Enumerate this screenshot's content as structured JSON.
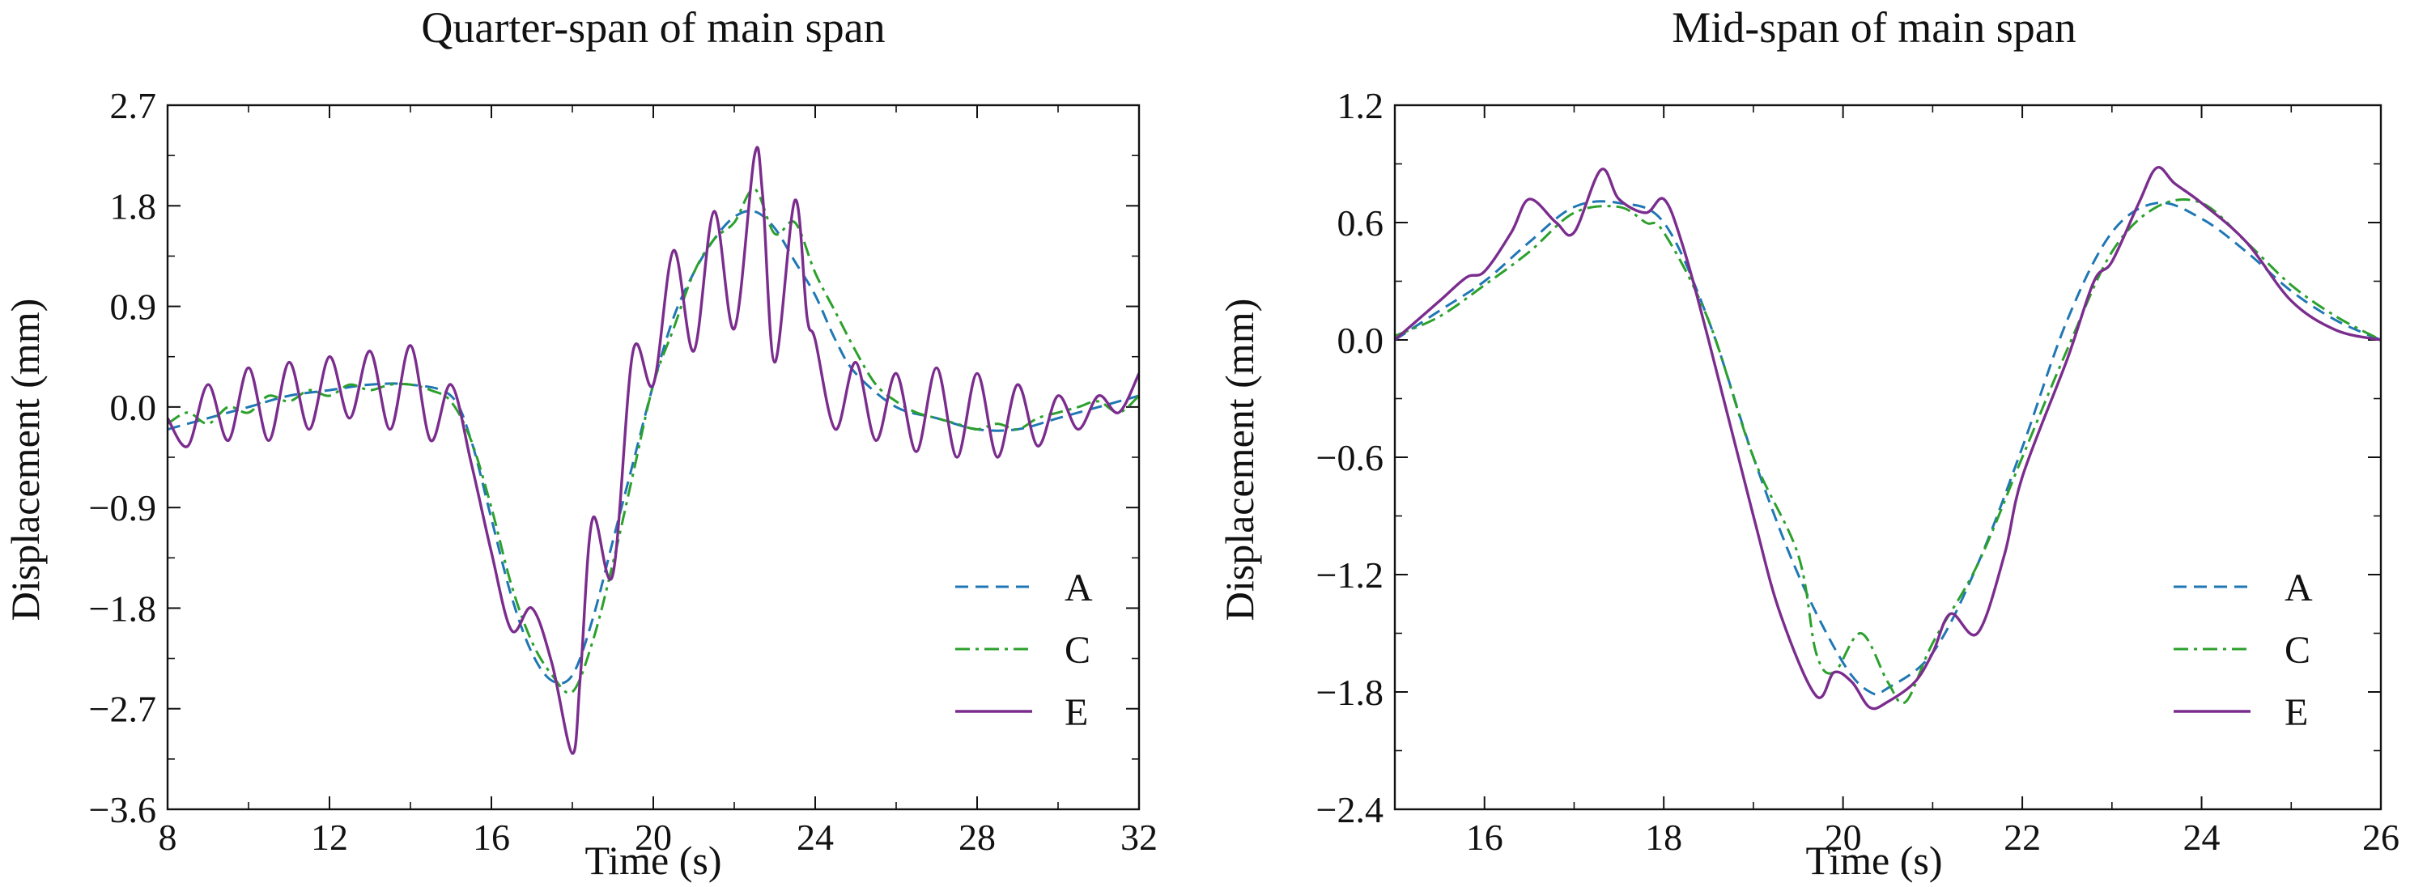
{
  "chart_data": [
    {
      "type": "line",
      "title": "Quarter-span of main span",
      "xlabel": "Time (s)",
      "ylabel": "Displacement (mm)",
      "xlim": [
        8,
        32
      ],
      "ylim": [
        -3.6,
        2.7
      ],
      "xticks": [
        8,
        12,
        16,
        20,
        24,
        28,
        32
      ],
      "xtick_labels": [
        "8",
        "12",
        "16",
        "20",
        "24",
        "28",
        "32"
      ],
      "yticks": [
        -3.6,
        -2.7,
        -1.8,
        -0.9,
        0.0,
        0.9,
        1.8,
        2.7
      ],
      "ytick_labels": [
        "−3.6",
        "−2.7",
        "−1.8",
        "−0.9",
        "0.0",
        "0.9",
        "1.8",
        "2.7"
      ],
      "grid": false,
      "legend_position": "lower-right",
      "series": [
        {
          "name": "A",
          "color": "#1f77b4",
          "dash": "dashed",
          "x": [
            8,
            9,
            10,
            11,
            12,
            13,
            14,
            15,
            15.5,
            16,
            16.5,
            17,
            17.5,
            18,
            18.5,
            19,
            19.5,
            20,
            20.5,
            21,
            21.5,
            22,
            22.5,
            23,
            23.5,
            24,
            24.5,
            25,
            26,
            27,
            28,
            29,
            30,
            31,
            32
          ],
          "y": [
            -0.2,
            -0.1,
            0.0,
            0.1,
            0.15,
            0.2,
            0.2,
            0.1,
            -0.3,
            -1.0,
            -1.7,
            -2.2,
            -2.45,
            -2.4,
            -1.9,
            -1.2,
            -0.5,
            0.2,
            0.8,
            1.2,
            1.5,
            1.7,
            1.75,
            1.6,
            1.3,
            1.0,
            0.6,
            0.3,
            0.0,
            -0.1,
            -0.2,
            -0.2,
            -0.1,
            0.0,
            0.1
          ]
        },
        {
          "name": "C",
          "color": "#2ca02c",
          "dash": "dashdot",
          "x": [
            8,
            8.5,
            9,
            9.5,
            10,
            10.5,
            11,
            11.5,
            12,
            12.5,
            13,
            13.5,
            14,
            14.5,
            15,
            15.5,
            16,
            16.5,
            17,
            17.5,
            18,
            18.5,
            19,
            19.5,
            20,
            20.5,
            21,
            21.5,
            22,
            22.5,
            23,
            23.5,
            24,
            24.5,
            25,
            25.5,
            26,
            26.5,
            27,
            27.5,
            28,
            28.5,
            29,
            29.5,
            30,
            30.5,
            31,
            31.5,
            32
          ],
          "y": [
            -0.15,
            -0.05,
            -0.15,
            0.0,
            -0.05,
            0.1,
            0.05,
            0.15,
            0.1,
            0.2,
            0.15,
            0.2,
            0.2,
            0.15,
            0.05,
            -0.3,
            -0.9,
            -1.6,
            -2.1,
            -2.4,
            -2.55,
            -2.1,
            -1.4,
            -0.6,
            0.2,
            0.7,
            1.2,
            1.5,
            1.65,
            1.95,
            1.55,
            1.65,
            1.2,
            0.85,
            0.5,
            0.2,
            0.05,
            -0.05,
            -0.1,
            -0.15,
            -0.2,
            -0.15,
            -0.2,
            -0.1,
            -0.05,
            0.0,
            0.05,
            -0.05,
            0.1
          ]
        },
        {
          "name": "E",
          "color": "#7b2d8e",
          "dash": "solid",
          "x": [
            8,
            8.5,
            9,
            9.5,
            10,
            10.5,
            11,
            11.5,
            12,
            12.5,
            13,
            13.5,
            14,
            14.5,
            15,
            15.5,
            16,
            16.5,
            17,
            17.5,
            18,
            18.2,
            18.5,
            19,
            19.5,
            20,
            20.5,
            21,
            21.5,
            22,
            22.5,
            22.7,
            23,
            23.5,
            23.8,
            24,
            24.5,
            25,
            25.5,
            26,
            26.5,
            27,
            27.5,
            28,
            28.5,
            29,
            29.5,
            30,
            30.5,
            31,
            31.5,
            32
          ],
          "y": [
            -0.1,
            -0.35,
            0.2,
            -0.3,
            0.35,
            -0.3,
            0.4,
            -0.2,
            0.45,
            -0.1,
            0.5,
            -0.2,
            0.55,
            -0.3,
            0.2,
            -0.5,
            -1.3,
            -2.0,
            -1.8,
            -2.3,
            -3.1,
            -2.4,
            -1.0,
            -1.5,
            0.5,
            0.2,
            1.4,
            0.5,
            1.75,
            0.7,
            2.25,
            1.9,
            0.4,
            1.85,
            0.8,
            0.6,
            -0.2,
            0.4,
            -0.3,
            0.3,
            -0.4,
            0.35,
            -0.45,
            0.3,
            -0.45,
            0.2,
            -0.35,
            0.1,
            -0.2,
            0.1,
            -0.05,
            0.3
          ]
        }
      ]
    },
    {
      "type": "line",
      "title": "Mid-span of main span",
      "xlabel": "Time (s)",
      "ylabel": "Displacement (mm)",
      "xlim": [
        15,
        26
      ],
      "ylim": [
        -2.4,
        1.2
      ],
      "xticks": [
        16,
        18,
        20,
        22,
        24,
        26
      ],
      "xtick_labels": [
        "16",
        "18",
        "20",
        "22",
        "24",
        "26"
      ],
      "yticks": [
        -2.4,
        -1.8,
        -1.2,
        -0.6,
        0.0,
        0.6,
        1.2
      ],
      "ytick_labels": [
        "−2.4",
        "−1.8",
        "−1.2",
        "−0.6",
        "0.0",
        "0.6",
        "1.2"
      ],
      "grid": false,
      "legend_position": "lower-right",
      "series": [
        {
          "name": "A",
          "color": "#1f77b4",
          "dash": "dashed",
          "x": [
            15,
            15.5,
            16,
            16.5,
            17,
            17.5,
            18,
            18.5,
            19,
            19.5,
            20,
            20.3,
            20.5,
            21,
            21.5,
            22,
            22.5,
            23,
            23.5,
            24,
            24.5,
            25,
            25.5,
            26
          ],
          "y": [
            0.0,
            0.15,
            0.3,
            0.5,
            0.68,
            0.7,
            0.6,
            0.1,
            -0.6,
            -1.2,
            -1.65,
            -1.8,
            -1.78,
            -1.6,
            -1.15,
            -0.55,
            0.1,
            0.55,
            0.7,
            0.62,
            0.45,
            0.25,
            0.1,
            0.0
          ]
        },
        {
          "name": "C",
          "color": "#2ca02c",
          "dash": "dashdot",
          "x": [
            15,
            15.5,
            16,
            16.5,
            17,
            17.5,
            17.8,
            18,
            18.5,
            19,
            19.5,
            19.7,
            19.9,
            20.2,
            20.5,
            20.7,
            21,
            21.5,
            22,
            22.5,
            23,
            23.5,
            24,
            24.5,
            25,
            25.5,
            26
          ],
          "y": [
            0.02,
            0.12,
            0.28,
            0.45,
            0.65,
            0.68,
            0.6,
            0.55,
            0.1,
            -0.6,
            -1.1,
            -1.6,
            -1.7,
            -1.5,
            -1.75,
            -1.85,
            -1.55,
            -1.15,
            -0.6,
            -0.05,
            0.45,
            0.68,
            0.7,
            0.5,
            0.28,
            0.12,
            0.0
          ]
        },
        {
          "name": "E",
          "color": "#7b2d8e",
          "dash": "solid",
          "x": [
            15,
            15.5,
            15.8,
            16,
            16.3,
            16.5,
            16.8,
            17,
            17.3,
            17.5,
            17.8,
            18,
            18.2,
            18.5,
            19,
            19.3,
            19.7,
            19.9,
            20.1,
            20.3,
            20.5,
            20.8,
            21,
            21.2,
            21.5,
            21.8,
            22,
            22.5,
            22.8,
            23,
            23.3,
            23.5,
            23.7,
            24,
            24.5,
            25,
            25.5,
            26
          ],
          "y": [
            0.0,
            0.2,
            0.32,
            0.35,
            0.55,
            0.72,
            0.6,
            0.55,
            0.87,
            0.72,
            0.65,
            0.72,
            0.5,
            0.0,
            -0.9,
            -1.4,
            -1.82,
            -1.7,
            -1.75,
            -1.88,
            -1.85,
            -1.75,
            -1.6,
            -1.4,
            -1.5,
            -1.1,
            -0.7,
            -0.1,
            0.3,
            0.4,
            0.7,
            0.88,
            0.8,
            0.7,
            0.5,
            0.2,
            0.05,
            0.0
          ]
        }
      ]
    }
  ]
}
